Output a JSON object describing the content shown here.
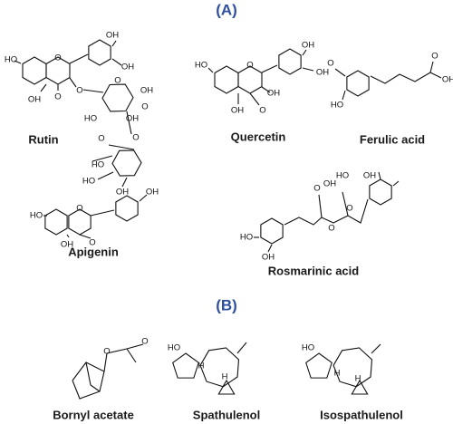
{
  "section_a": {
    "label": "(A)",
    "compounds": [
      {
        "name": "Rutin",
        "atoms": [
          "HO",
          "O",
          "OH",
          "OH",
          "OH",
          "O",
          "O",
          "O",
          "OH",
          "OH",
          "HO",
          "O",
          "O",
          "O",
          "HO",
          "HO",
          "OH"
        ]
      },
      {
        "name": "Quercetin",
        "atoms": [
          "HO",
          "O",
          "OH",
          "OH",
          "OH",
          "OH",
          "O"
        ]
      },
      {
        "name": "Ferulic acid",
        "atoms": [
          "O",
          "HO",
          "O",
          "OH"
        ]
      },
      {
        "name": "Apigenin",
        "atoms": [
          "HO",
          "O",
          "OH",
          "OH",
          "O"
        ]
      },
      {
        "name": "Rosmarinic acid",
        "atoms": [
          "O",
          "OH",
          "HO",
          "OH",
          "O",
          "O",
          "HO",
          "OH"
        ]
      }
    ]
  },
  "section_b": {
    "label": "(B)",
    "compounds": [
      {
        "name": "Bornyl acetate",
        "atoms": [
          "O",
          "O"
        ]
      },
      {
        "name": "Spathulenol",
        "atoms": [
          "HO",
          "H",
          "H"
        ]
      },
      {
        "name": "Isospathulenol",
        "atoms": [
          "HO",
          "H",
          "H"
        ]
      }
    ]
  }
}
